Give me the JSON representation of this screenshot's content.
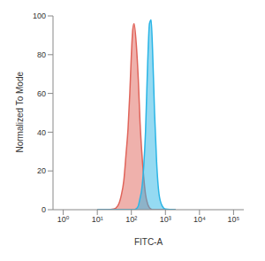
{
  "chart_data": {
    "type": "area",
    "x_label": "FITC-A",
    "y_label": "Normalized To Mode",
    "log": "x",
    "grid": false,
    "xlim": [
      0.5,
      200000
    ],
    "xticks": [
      {
        "value": 1,
        "label": "10⁰"
      },
      {
        "value": 10,
        "label": "10¹"
      },
      {
        "value": 100,
        "label": "10²"
      },
      {
        "value": 1000,
        "label": "10³"
      },
      {
        "value": 10000,
        "label": "10⁴"
      },
      {
        "value": 100000,
        "label": "10⁵"
      }
    ],
    "ylim": [
      0,
      100
    ],
    "yticks": [
      0,
      20,
      40,
      60,
      80,
      100
    ],
    "x": [
      10,
      20,
      30,
      40,
      50,
      60,
      70,
      80,
      90,
      100,
      110,
      120,
      140,
      160,
      180,
      200,
      230,
      260,
      300,
      340,
      380,
      420,
      480,
      550,
      650,
      800,
      1000,
      2000
    ],
    "series": [
      {
        "color": "#e0645a",
        "values": [
          0,
          0,
          0.3,
          2,
          7,
          15,
          29,
          42,
          60,
          80,
          93,
          96,
          85,
          67,
          45,
          31,
          17,
          8,
          3,
          1,
          0.3,
          0,
          0,
          0,
          0,
          0,
          0,
          0
        ]
      },
      {
        "color": "#2bb5e6",
        "values": [
          0,
          0,
          0,
          0,
          0,
          0,
          0,
          0,
          0,
          0,
          0,
          0,
          0.5,
          2,
          6,
          10,
          22,
          40,
          75,
          96,
          98,
          82,
          50,
          25,
          8,
          2,
          0.3,
          0
        ]
      }
    ]
  }
}
